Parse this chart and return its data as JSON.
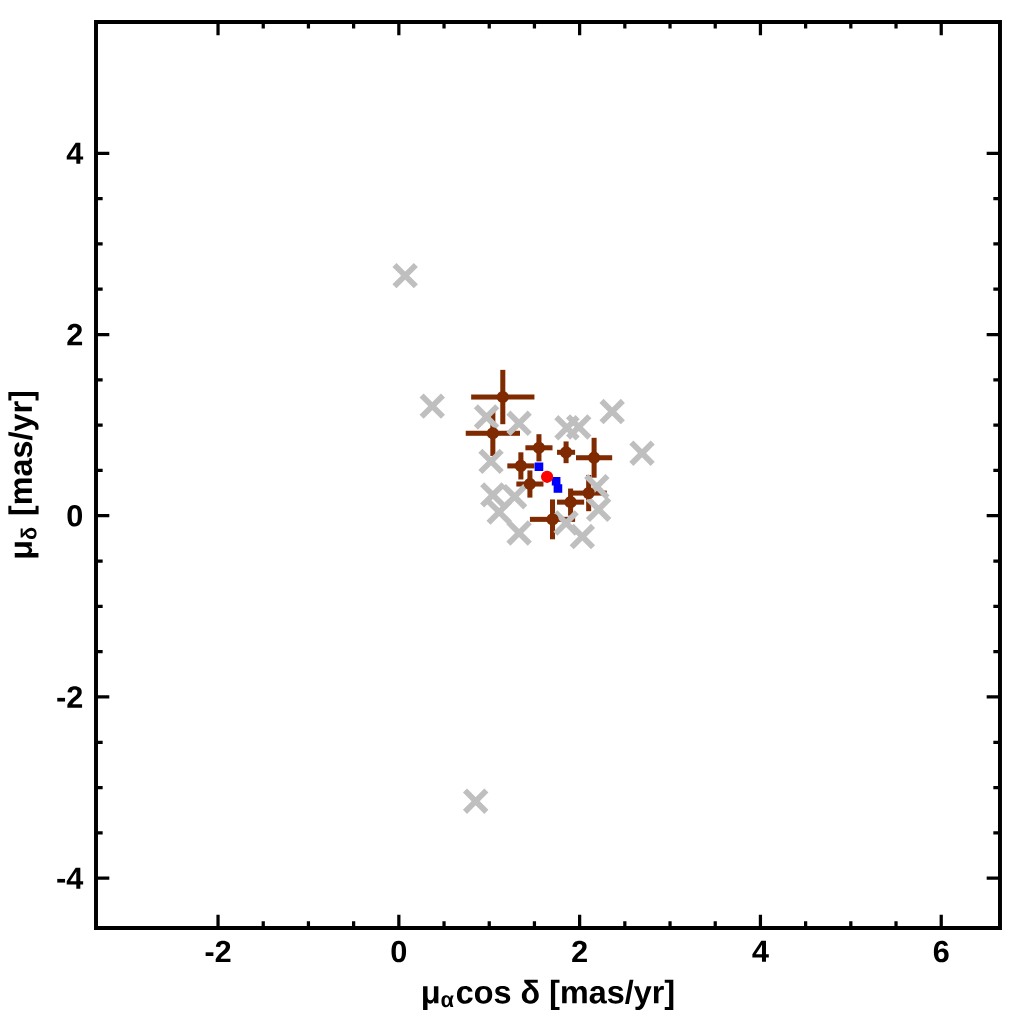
{
  "chart_data": {
    "type": "scatter",
    "xlabel": "μ$_{α}$cos δ  [mas/yr]",
    "ylabel": "μ$_{δ}$ [mas/yr]",
    "xlim": [
      -3.35,
      6.65
    ],
    "ylim": [
      -4.55,
      5.45
    ],
    "xticks": [
      -2,
      0,
      2,
      4,
      6
    ],
    "yticks": [
      -4,
      -2,
      0,
      2,
      4
    ],
    "series": [
      {
        "color": "#bfbfbf",
        "marker": "cross",
        "x": [
          0.07,
          0.37,
          2.36,
          2.69,
          0.85,
          1.02,
          1.04,
          1.11,
          1.33,
          1.99,
          1.86,
          2.19,
          2.21,
          2.03,
          1.85,
          0.97,
          1.33,
          1.28
        ],
        "values": [
          2.65,
          1.21,
          1.15,
          0.69,
          -3.15,
          0.6,
          0.23,
          0.04,
          -0.19,
          0.98,
          0.97,
          0.32,
          0.07,
          -0.23,
          -0.08,
          1.09,
          1.02,
          0.21
        ]
      },
      {
        "color": "#7f2a00",
        "marker": "circle",
        "x": [
          1.15,
          1.04,
          2.16,
          1.7,
          2.1,
          1.45,
          1.85,
          1.55,
          1.9,
          1.35
        ],
        "values": [
          1.31,
          0.91,
          0.64,
          -0.04,
          0.25,
          0.35,
          0.7,
          0.75,
          0.15,
          0.55
        ],
        "xerrors": [
          0.35,
          0.3,
          0.2,
          0.25,
          0.2,
          0.15,
          0.1,
          0.15,
          0.15,
          0.15
        ],
        "errors": [
          0.3,
          0.25,
          0.22,
          0.22,
          0.2,
          0.15,
          0.12,
          0.15,
          0.15,
          0.15
        ]
      },
      {
        "color": "#0000ff",
        "marker": "square",
        "x": [
          1.55,
          1.74,
          1.76
        ],
        "values": [
          0.54,
          0.38,
          0.3
        ]
      },
      {
        "color": "#ff0000",
        "marker": "circle",
        "x": [
          1.64
        ],
        "values": [
          0.43
        ]
      }
    ]
  }
}
